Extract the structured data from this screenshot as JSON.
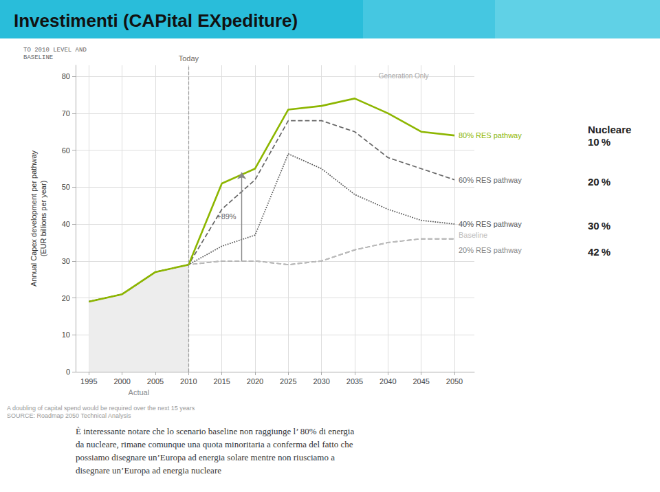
{
  "chart_data": {
    "type": "line",
    "title": "Investimenti (CAPital EXpediture)",
    "ylabel": "Annual Capex development per pathway\n(EUR billions per year)",
    "x": [
      1995,
      2000,
      2005,
      2010,
      2015,
      2020,
      2025,
      2030,
      2035,
      2040,
      2045,
      2050
    ],
    "series": [
      {
        "name": "20% RES pathway",
        "color": "#888888",
        "line_style": "dashed",
        "values": [
          19,
          21,
          27,
          29,
          30,
          30,
          29,
          30,
          33,
          35,
          36,
          36
        ],
        "label_y": 33.0
      },
      {
        "name": "Baseline",
        "color": "#BBBBBB",
        "line_style": "dashed",
        "values": [
          19,
          21,
          27,
          29,
          30,
          30,
          29,
          30,
          33,
          35,
          36,
          36
        ],
        "label_y": 37.0
      },
      {
        "name": "40% RES pathway",
        "color": "#555555",
        "line_style": "dotted",
        "values": [
          19,
          21,
          27,
          29,
          34,
          37,
          59,
          55,
          48,
          44,
          41,
          40
        ],
        "label_y": 40.0
      },
      {
        "name": "60% RES pathway",
        "color": "#666666",
        "line_style": "dashed",
        "values": [
          19,
          21,
          27,
          29,
          44,
          52,
          68,
          68,
          65,
          58,
          55,
          52
        ],
        "label_y": 52.0
      },
      {
        "name": "80% RES pathway",
        "color": "#8DB600",
        "line_style": "solid",
        "values": [
          19,
          21,
          27,
          29,
          51,
          55,
          71,
          72,
          74,
          70,
          65,
          64
        ],
        "label_y": 64.0
      }
    ],
    "xlim": [
      1993,
      2053
    ],
    "xticks": [
      1995,
      2000,
      2005,
      2010,
      2015,
      2020,
      2025,
      2030,
      2035,
      2040,
      2045,
      2050
    ],
    "ylim": [
      0,
      83
    ],
    "yticks": [
      0,
      10,
      20,
      30,
      40,
      50,
      60,
      70,
      80
    ],
    "grid": true,
    "actual_area": {
      "label": "Actual",
      "x": [
        1995,
        2000,
        2005,
        2010
      ],
      "values": [
        19,
        21,
        27,
        29
      ]
    },
    "today": {
      "x": 2010,
      "label": "Today"
    },
    "arrow": {
      "x": 2018,
      "y_start": 30,
      "y_end": 54,
      "text": "+89%"
    },
    "pct_labels": [
      {
        "text": "Nucleare\n10 %",
        "y": 64.0
      },
      {
        "text": "20 %",
        "y": 51.5
      },
      {
        "text": "30 %",
        "y": 39.5
      },
      {
        "text": "42 %",
        "y": 32.5
      }
    ],
    "generation_only_label": "Generation Only",
    "baseline_label": "TO 2010 LEVEL AND\nBASELINE",
    "source_text": "A doubling of capital spend would be required over the next 15 years\nSOURCE: Roadmap 2050 Technical Analysis",
    "bottom_text": "È interessante notare che lo scenario baseline non raggiunge l’ 80% di energia\nda nucleare, rimane comunque una quota minoritaria a conferma del fatto che\npossiamo disegnare un’Europa ad energia solare mentre non riusciamo a\ndisegnare un’Europa ad energia nucleare"
  }
}
